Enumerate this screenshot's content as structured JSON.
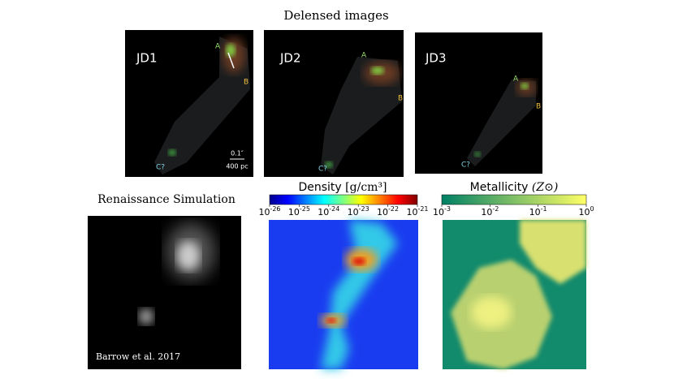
{
  "header": {
    "title": "Delensed images"
  },
  "delensed_panels": [
    {
      "label": "JD1",
      "images": {
        "a": "A",
        "b": "B",
        "c": "C?"
      },
      "scale_angle": "0.1″",
      "scale_length": "400 pc"
    },
    {
      "label": "JD2",
      "images": {
        "a": "A",
        "b": "B",
        "c": "C?"
      }
    },
    {
      "label": "JD3",
      "images": {
        "a": "A",
        "b": "B",
        "c": "C?"
      }
    }
  ],
  "simulation": {
    "title": "Renaissance Simulation",
    "credit": "Barrow et al. 2017"
  },
  "density_colorbar": {
    "title": "Density",
    "unit": "[g/cm³]",
    "ticks": [
      {
        "base": "10",
        "exponent": "-26"
      },
      {
        "base": "10",
        "exponent": "-25"
      },
      {
        "base": "10",
        "exponent": "-24"
      },
      {
        "base": "10",
        "exponent": "-23"
      },
      {
        "base": "10",
        "exponent": "-22"
      },
      {
        "base": "10",
        "exponent": "-21"
      }
    ]
  },
  "metallicity_colorbar": {
    "title": "Metallicity",
    "unit": "(Z⊙)",
    "ticks": [
      {
        "base": "10",
        "exponent": "-3"
      },
      {
        "base": "10",
        "exponent": "-2"
      },
      {
        "base": "10",
        "exponent": "-1"
      },
      {
        "base": "10",
        "exponent": "0"
      }
    ]
  }
}
